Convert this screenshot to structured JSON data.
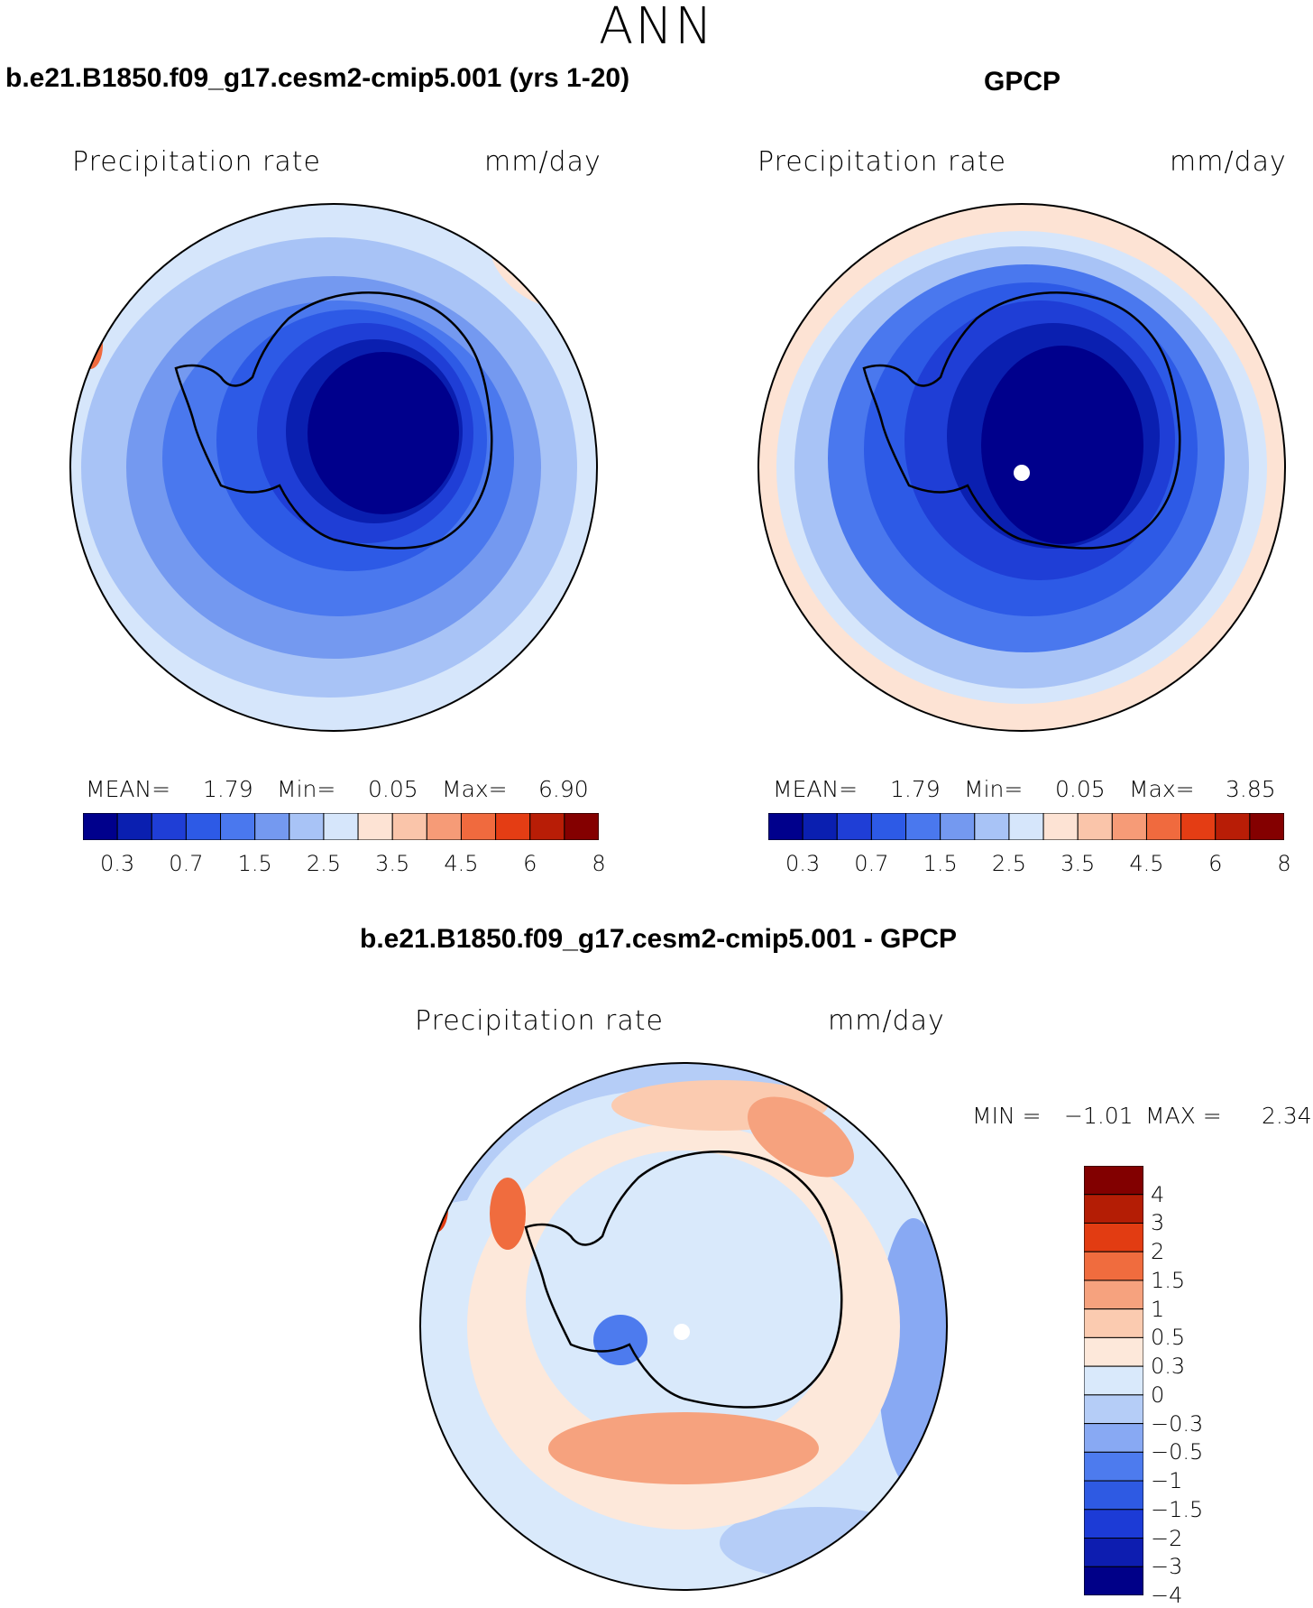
{
  "season": "ANN",
  "panels": [
    {
      "title": "b.e21.B1850.f09_g17.cesm2-cmip5.001 (yrs 1-20)",
      "variable": "Precipitation rate",
      "units": "mm/day",
      "stats": {
        "mean_label": "MEAN=",
        "mean": "1.79",
        "min_label": "Min=",
        "min": "0.05",
        "max_label": "Max=",
        "max": "6.90"
      }
    },
    {
      "title": "GPCP",
      "variable": "Precipitation rate",
      "units": "mm/day",
      "stats": {
        "mean_label": "MEAN=",
        "mean": "1.79",
        "min_label": "Min=",
        "min": "0.05",
        "max_label": "Max=",
        "max": "3.85"
      }
    }
  ],
  "diff_panel": {
    "title": "b.e21.B1850.f09_g17.cesm2-cmip5.001 - GPCP",
    "variable": "Precipitation rate",
    "units": "mm/day",
    "min_label": "MIN =",
    "min": "−1.01",
    "max_label": "MAX =",
    "max": "2.34"
  },
  "colorbar_abs": {
    "colors": [
      "#00008c",
      "#0a1fb0",
      "#1f3ed6",
      "#2d5ae6",
      "#4a78ee",
      "#7499f0",
      "#a8c3f6",
      "#d6e6fb",
      "#fde3d4",
      "#fac5aa",
      "#f69b77",
      "#f06a3e",
      "#e43d14",
      "#b81d06",
      "#840000"
    ],
    "tick_labels": [
      "0.3",
      "0.7",
      "1.5",
      "2.5",
      "3.5",
      "4.5",
      "6",
      "8"
    ]
  },
  "colorbar_diff": {
    "colors": [
      "#000088",
      "#0d1db0",
      "#1c3bd6",
      "#2e5ae3",
      "#4d7bee",
      "#88a9f3",
      "#b5cdf7",
      "#d9e9fb",
      "#fde8da",
      "#fbcbb0",
      "#f6a27e",
      "#f06c3e",
      "#e23c12",
      "#b41d05",
      "#820000"
    ],
    "tick_labels": [
      "4",
      "3",
      "2",
      "1.5",
      "1",
      "0.5",
      "0.3",
      "0",
      "−0.3",
      "−0.5",
      "−1",
      "−1.5",
      "−2",
      "−3",
      "−4"
    ]
  }
}
